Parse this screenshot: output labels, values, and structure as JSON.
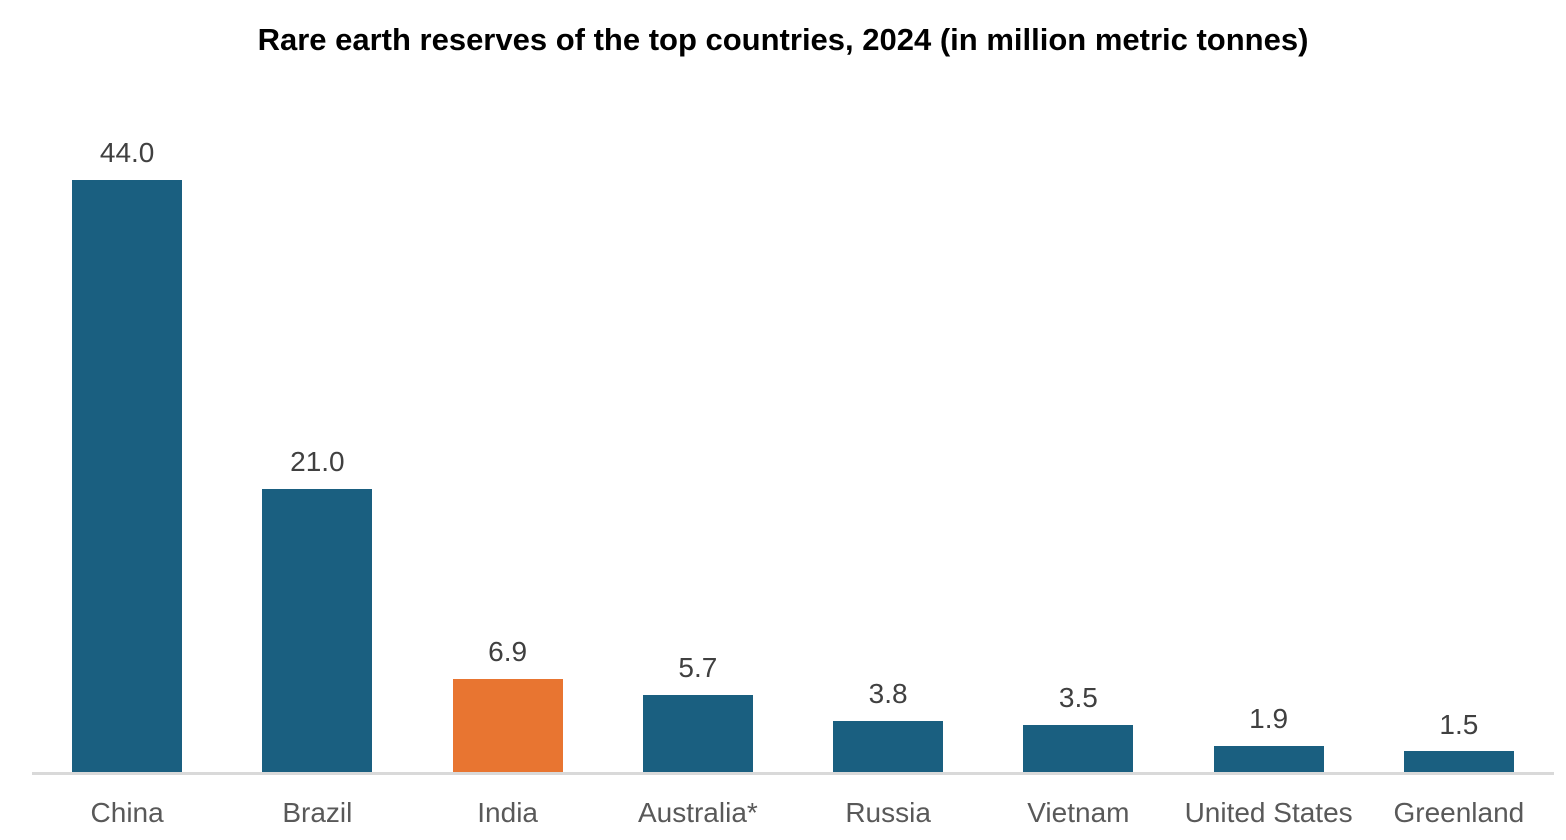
{
  "title": "Rare earth reserves of the top countries, 2024 (in million metric tonnes)",
  "chart_data": {
    "type": "bar",
    "title": "Rare earth reserves of the top countries, 2024 (in million metric tonnes)",
    "categories": [
      "China",
      "Brazil",
      "India",
      "Australia*",
      "Russia",
      "Vietnam",
      "United States",
      "Greenland"
    ],
    "values": [
      44.0,
      21.0,
      6.9,
      5.7,
      3.8,
      3.5,
      1.9,
      1.5
    ],
    "value_labels": [
      "44.0",
      "21.0",
      "6.9",
      "5.7",
      "3.8",
      "3.5",
      "1.9",
      "1.5"
    ],
    "xlabel": "",
    "ylabel": "",
    "unit": "million metric tonnes",
    "ylim": [
      0,
      47.5
    ],
    "grid": false,
    "legend": false,
    "highlight_index": 2,
    "colors": {
      "bar_default": "#1A5F80",
      "bar_highlight": "#E87531",
      "axis_line": "#D9D9D9",
      "value_label": "#404040",
      "category_label": "#595959",
      "title": "#000000"
    }
  }
}
